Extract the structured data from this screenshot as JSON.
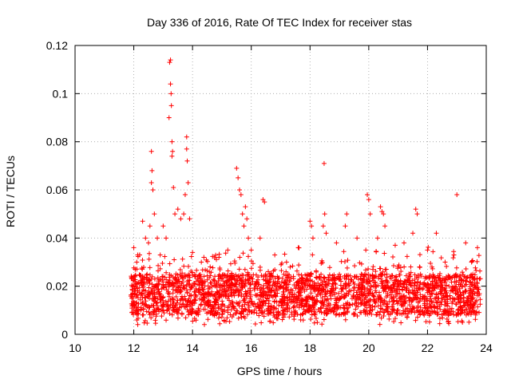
{
  "chart_data": {
    "type": "scatter",
    "title": "Day 336 of 2016, Rate Of TEC Index for receiver stas",
    "xlabel": "GPS time / hours",
    "ylabel": "ROTI / TECUs",
    "xlim": [
      10,
      24
    ],
    "ylim": [
      0,
      0.12
    ],
    "xticks": [
      10,
      12,
      14,
      16,
      18,
      20,
      22,
      24
    ],
    "yticks": [
      0,
      0.02,
      0.04,
      0.06,
      0.08,
      0.1,
      0.12
    ],
    "xtick_labels": [
      "10",
      "12",
      "14",
      "16",
      "18",
      "20",
      "22",
      "24"
    ],
    "ytick_labels": [
      "0",
      "0.02",
      "0.04",
      "0.06",
      "0.08",
      "0.1",
      "0.12"
    ],
    "grid": true,
    "marker": "plus",
    "color": "#ff0000",
    "data_range": [
      11.9,
      23.8
    ],
    "baseline": {
      "typical_low": 0.008,
      "typical_high": 0.025
    },
    "series": [
      {
        "name": "ROTI",
        "x": [
          12.0,
          12.1,
          12.2,
          12.3,
          12.4,
          12.5,
          12.55,
          12.6,
          12.6,
          12.62,
          12.65,
          12.7,
          12.8,
          12.9,
          13.0,
          13.1,
          13.2,
          13.22,
          13.25,
          13.25,
          13.27,
          13.28,
          13.3,
          13.3,
          13.32,
          13.35,
          13.4,
          13.5,
          13.6,
          13.7,
          13.75,
          13.8,
          13.8,
          13.82,
          13.85,
          13.9,
          14.0,
          14.3,
          14.6,
          14.9,
          15.2,
          15.5,
          15.55,
          15.6,
          15.65,
          15.7,
          15.75,
          15.8,
          15.85,
          15.9,
          16.0,
          16.3,
          16.4,
          16.45,
          16.8,
          17.2,
          17.6,
          18.0,
          18.05,
          18.1,
          18.45,
          18.48,
          18.5,
          18.55,
          18.9,
          19.2,
          19.25,
          19.6,
          19.9,
          19.95,
          20.0,
          20.05,
          20.3,
          20.4,
          20.45,
          20.5,
          20.55,
          20.9,
          21.2,
          21.5,
          21.6,
          21.65,
          22.0,
          22.3,
          22.6,
          22.9,
          23.0,
          23.3,
          23.5,
          23.7
        ],
        "y": [
          0.036,
          0.03,
          0.033,
          0.047,
          0.04,
          0.038,
          0.045,
          0.076,
          0.063,
          0.068,
          0.06,
          0.05,
          0.04,
          0.033,
          0.045,
          0.04,
          0.09,
          0.113,
          0.114,
          0.104,
          0.1,
          0.095,
          0.08,
          0.074,
          0.076,
          0.061,
          0.05,
          0.052,
          0.048,
          0.05,
          0.058,
          0.082,
          0.077,
          0.072,
          0.063,
          0.048,
          0.034,
          0.03,
          0.028,
          0.032,
          0.035,
          0.069,
          0.065,
          0.06,
          0.058,
          0.05,
          0.045,
          0.053,
          0.048,
          0.04,
          0.035,
          0.04,
          0.056,
          0.055,
          0.033,
          0.03,
          0.036,
          0.047,
          0.045,
          0.04,
          0.045,
          0.071,
          0.05,
          0.042,
          0.038,
          0.045,
          0.05,
          0.04,
          0.035,
          0.058,
          0.056,
          0.05,
          0.04,
          0.053,
          0.051,
          0.05,
          0.045,
          0.037,
          0.038,
          0.042,
          0.052,
          0.05,
          0.035,
          0.042,
          0.03,
          0.033,
          0.058,
          0.038,
          0.03,
          0.036
        ]
      }
    ]
  }
}
